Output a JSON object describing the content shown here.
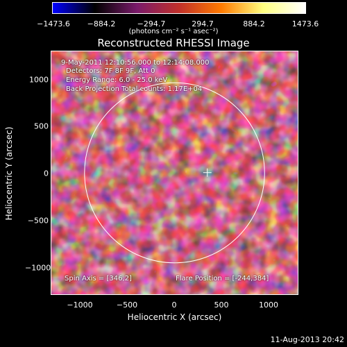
{
  "colorbar": {
    "ticks": [
      "−1473.6",
      "−884.2",
      "−294.7",
      "294.7",
      "884.2",
      "1473.6"
    ],
    "units": "(photons cm⁻² s⁻¹ asec⁻²)",
    "colors": [
      "#0000ff",
      "#000000",
      "#7a1a6a",
      "#c0302a",
      "#ff7a00",
      "#ffff80",
      "#ffffff"
    ]
  },
  "title": "Reconstructed RHESSI Image",
  "annotations": {
    "time_range": "9-May-2011 12:10:56.000 to 12:14:08.000",
    "detectors": "Detectors: 7F 8F 9F, Att 0",
    "energy_range": "Energy Range: 6.0 - 25.0 keV",
    "method_counts": "Back Projection    Total counts: 1.17E+04",
    "spin_axis": "Spin Axis = [346,2]",
    "flare_position": "Flare Position = [-244,384]"
  },
  "axes": {
    "xlabel": "Heliocentric X (arcsec)",
    "ylabel": "Heliocentric Y (arcsec)",
    "xticks": [
      "−1000",
      "−500",
      "0",
      "500",
      "1000"
    ],
    "yticks": [
      "1000",
      "500",
      "0",
      "−500",
      "−1000"
    ],
    "xlim": [
      -1300,
      1300
    ],
    "ylim": [
      -1280,
      1280
    ]
  },
  "plot": {
    "limb_radius_arcsec": 950,
    "cross_arcsec": [
      346,
      2
    ]
  },
  "footer_date": "11-Aug-2013 20:42"
}
